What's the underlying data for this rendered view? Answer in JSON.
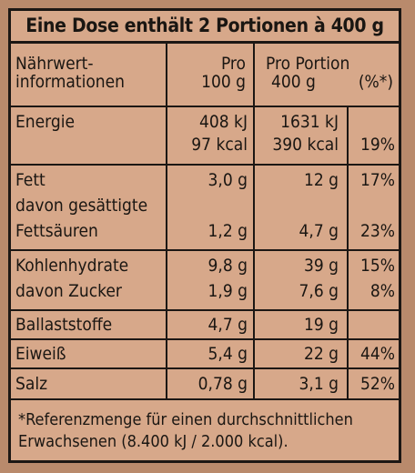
{
  "title": "Eine Dose enthält 2 Portionen à 400 g",
  "header": {
    "col1_line1": "Nährwert-",
    "col1_line2": "informationen",
    "col2_line1": "Pro",
    "col2_line2": "100 g",
    "col3_line1": "Pro Portion",
    "col3_line2": "400 g",
    "col4_line2": "(%*)"
  },
  "rows": {
    "energie": {
      "label": "Energie",
      "v100_kj": "408 kJ",
      "v100_kcal": "97 kcal",
      "vport_kj": "1631 kJ",
      "vport_kcal": "390 kcal",
      "pct": "19%"
    },
    "fett": {
      "label": "Fett",
      "sub1": "davon gesättigte",
      "sub2": "Fettsäuren",
      "v100": "3,0 g",
      "vport": "12 g",
      "pct": "17%",
      "sub_v100": "1,2 g",
      "sub_vport": "4,7 g",
      "sub_pct": "23%"
    },
    "kh": {
      "label": "Kohlenhydrate",
      "sub": "davon Zucker",
      "v100": "9,8 g",
      "vport": "39 g",
      "pct": "15%",
      "sub_v100": "1,9 g",
      "sub_vport": "7,6 g",
      "sub_pct": "8%"
    },
    "ballast": {
      "label": "Ballaststoffe",
      "v100": "4,7 g",
      "vport": "19 g"
    },
    "eiweiss": {
      "label": "Eiweiß",
      "v100": "5,4 g",
      "vport": "22 g",
      "pct": "44%"
    },
    "salz": {
      "label": "Salz",
      "v100": "0,78 g",
      "vport": "3,1 g",
      "pct": "52%"
    }
  },
  "footnote_line1": "*Referenzmenge für einen durchschnittlichen",
  "footnote_line2": "Erwachsenen (8.400 kJ / 2.000 kcal)."
}
